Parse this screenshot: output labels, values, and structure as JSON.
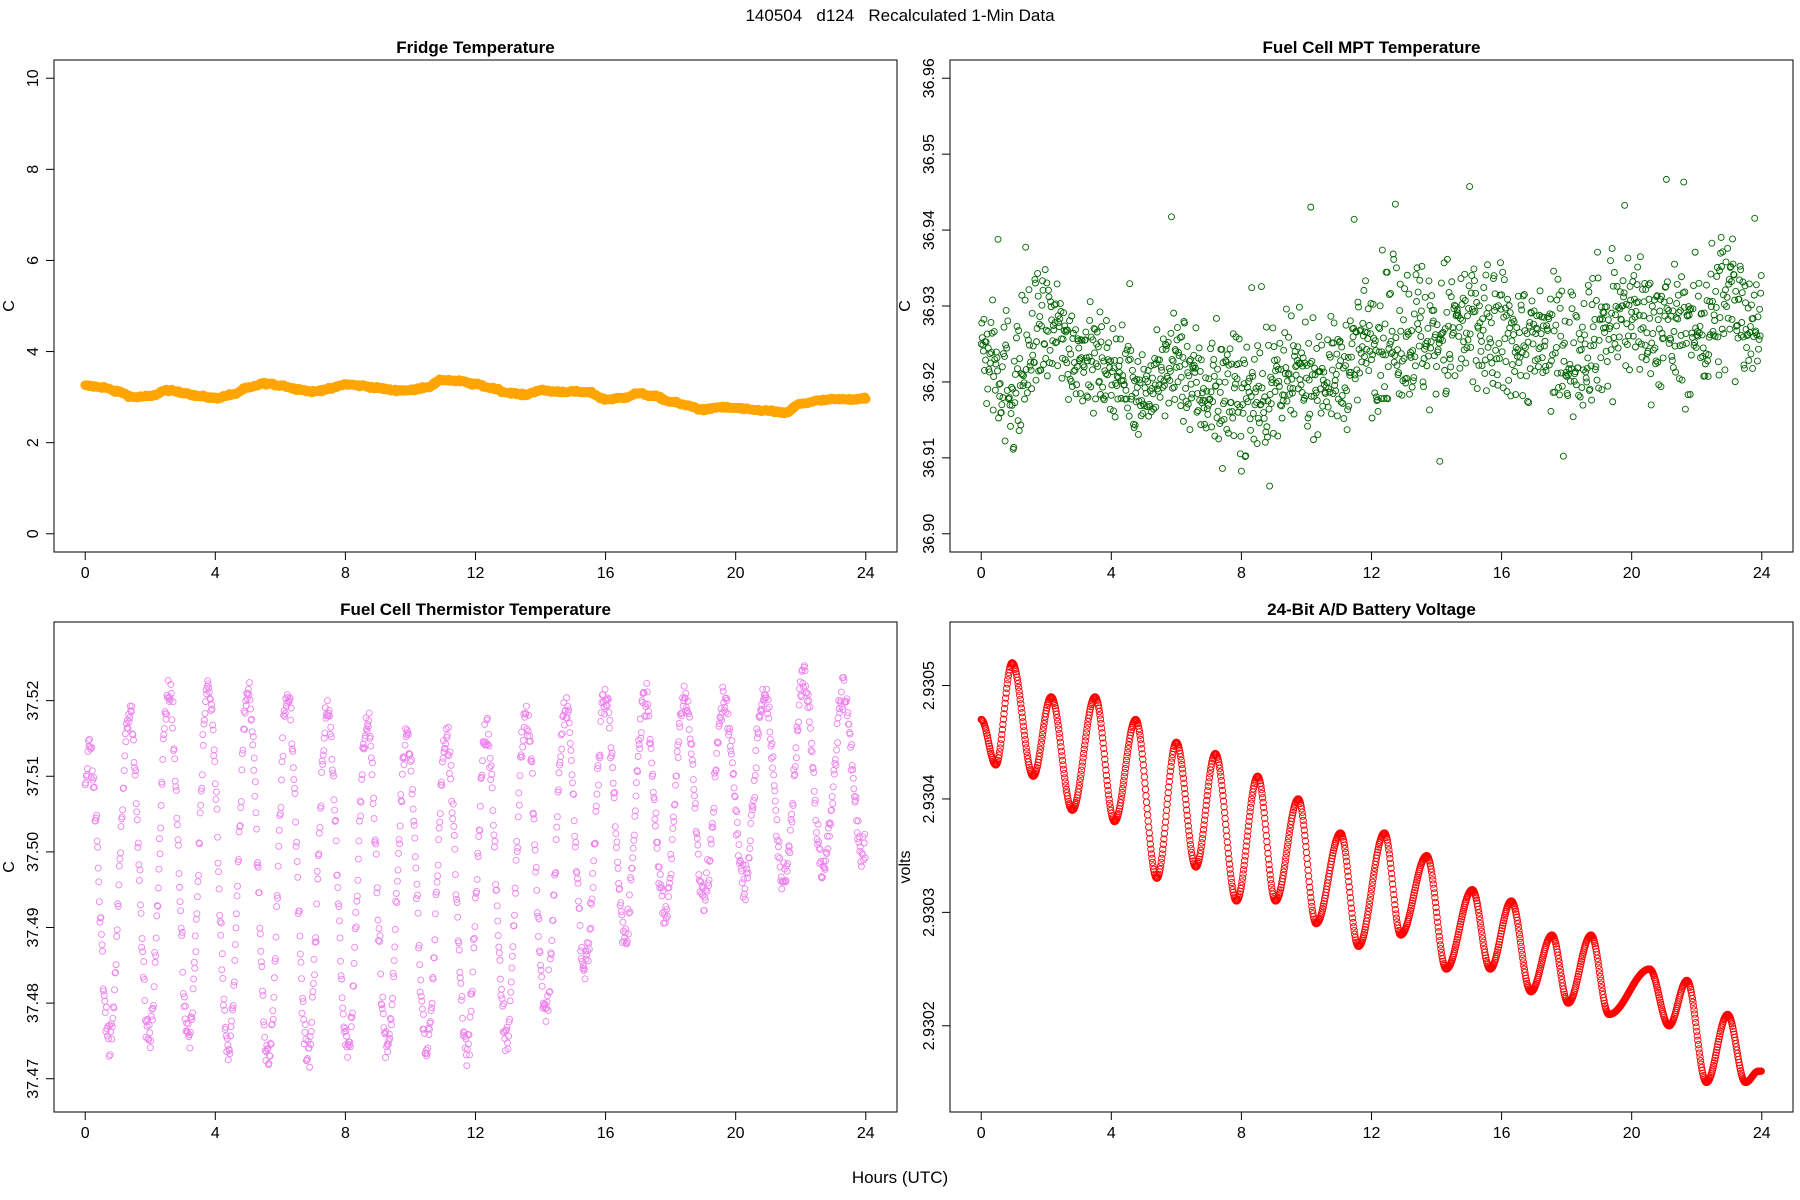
{
  "header": {
    "id": "140504",
    "day": "d124",
    "title": "Recalculated 1-Min Data"
  },
  "global_xlabel": "Hours (UTC)",
  "chart_data": [
    {
      "type": "scatter",
      "title": "Fridge Temperature",
      "xlabel": "",
      "ylabel": "C",
      "color": "#FFA500",
      "marker": "filled-dense",
      "xlim": [
        0,
        24
      ],
      "ylim": [
        0,
        10
      ],
      "xticks": [
        0,
        4,
        8,
        12,
        16,
        20,
        24
      ],
      "yticks": [
        0,
        2,
        4,
        6,
        8,
        10
      ],
      "ytick_labels": [
        "0",
        "2",
        "4",
        "6",
        "8",
        "10"
      ],
      "series": [
        {
          "name": "Fridge Temperature",
          "x": [
            0,
            0.5,
            1,
            1.5,
            2,
            2.5,
            3,
            3.5,
            4,
            4.5,
            5,
            5.5,
            6,
            6.5,
            7,
            7.5,
            8,
            8.5,
            9,
            9.5,
            10,
            10.5,
            11,
            11.5,
            12,
            12.5,
            13,
            13.5,
            14,
            14.5,
            15,
            15.5,
            16,
            16.5,
            17,
            17.5,
            18,
            18.5,
            19,
            19.5,
            20,
            20.5,
            21,
            21.5,
            22,
            22.5,
            23,
            23.5,
            24
          ],
          "y": [
            3.25,
            3.22,
            3.12,
            3.0,
            3.02,
            3.15,
            3.1,
            3.02,
            2.98,
            3.05,
            3.2,
            3.3,
            3.26,
            3.18,
            3.12,
            3.18,
            3.28,
            3.25,
            3.2,
            3.15,
            3.15,
            3.22,
            3.38,
            3.35,
            3.28,
            3.2,
            3.1,
            3.05,
            3.15,
            3.12,
            3.12,
            3.1,
            2.95,
            2.98,
            3.08,
            3.02,
            2.9,
            2.82,
            2.72,
            2.78,
            2.76,
            2.72,
            2.7,
            2.65,
            2.85,
            2.92,
            2.95,
            2.95,
            2.98
          ]
        }
      ]
    },
    {
      "type": "scatter",
      "title": "Fuel Cell MPT Temperature",
      "xlabel": "",
      "ylabel": "C",
      "color": "#006400",
      "marker": "open-circle",
      "xlim": [
        0,
        24
      ],
      "ylim": [
        36.9,
        36.96
      ],
      "xticks": [
        0,
        4,
        8,
        12,
        16,
        20,
        24
      ],
      "yticks": [
        36.9,
        36.91,
        36.92,
        36.93,
        36.94,
        36.95,
        36.96
      ],
      "ytick_labels": [
        "36.90",
        "36.91",
        "36.92",
        "36.93",
        "36.94",
        "36.95",
        "36.96"
      ],
      "series": [
        {
          "name": "Fuel Cell MPT Temperature",
          "x": [
            0,
            1,
            2,
            3,
            4,
            5,
            6,
            7,
            8,
            9,
            10,
            11,
            12,
            13,
            14,
            15,
            16,
            17,
            18,
            19,
            20,
            21,
            22,
            23,
            24
          ],
          "y": [
            36.924,
            36.92,
            36.927,
            36.924,
            36.922,
            36.919,
            36.922,
            36.919,
            36.918,
            36.919,
            36.921,
            36.921,
            36.926,
            36.927,
            36.926,
            36.927,
            36.926,
            36.925,
            36.924,
            36.927,
            36.929,
            36.927,
            36.927,
            36.931,
            36.928
          ],
          "spread": [
            0.006,
            0.009,
            0.007,
            0.006,
            0.005,
            0.005,
            0.006,
            0.007,
            0.007,
            0.007,
            0.006,
            0.006,
            0.008,
            0.009,
            0.009,
            0.009,
            0.008,
            0.007,
            0.008,
            0.008,
            0.008,
            0.007,
            0.008,
            0.009,
            0.007
          ]
        }
      ]
    },
    {
      "type": "scatter",
      "title": "Fuel Cell Thermistor Temperature",
      "xlabel": "",
      "ylabel": "C",
      "color": "#EE82EE",
      "marker": "open-circle",
      "xlim": [
        0,
        24
      ],
      "ylim": [
        37.468,
        37.528
      ],
      "xticks": [
        0,
        4,
        8,
        12,
        16,
        20,
        24
      ],
      "yticks": [
        37.47,
        37.48,
        37.49,
        37.5,
        37.51,
        37.52
      ],
      "ytick_labels": [
        "37.47",
        "37.48",
        "37.49",
        "37.50",
        "37.51",
        "37.52"
      ],
      "series": [
        {
          "name": "Fuel Cell Thermistor Temperature",
          "cycle_hours": 1.22,
          "x": [
            0,
            2,
            4,
            6,
            8,
            10,
            12,
            14,
            16,
            18,
            20,
            22,
            24
          ],
          "y_max": [
            37.513,
            37.521,
            37.522,
            37.521,
            37.518,
            37.515,
            37.515,
            37.519,
            37.52,
            37.521,
            37.52,
            37.523,
            37.52
          ],
          "y_min": [
            37.474,
            37.476,
            37.475,
            37.472,
            37.474,
            37.474,
            37.474,
            37.478,
            37.488,
            37.492,
            37.496,
            37.496,
            37.5
          ]
        }
      ]
    },
    {
      "type": "line",
      "title": "24-Bit A/D Battery Voltage",
      "xlabel": "",
      "ylabel": "volts",
      "color": "#FF0000",
      "marker": "open-circle",
      "xlim": [
        0,
        24
      ],
      "ylim": [
        2.93014,
        2.93054
      ],
      "xticks": [
        0,
        4,
        8,
        12,
        16,
        20,
        24
      ],
      "yticks": [
        2.9302,
        2.9303,
        2.9304,
        2.9305
      ],
      "ytick_labels": [
        "2.9302",
        "2.9303",
        "2.9304",
        "2.9305"
      ],
      "series": [
        {
          "name": "24-Bit A/D Battery Voltage",
          "cycle_hours": 1.25,
          "x": [
            0,
            0.45,
            0.95,
            1.6,
            2.15,
            2.8,
            3.5,
            4.1,
            4.75,
            5.4,
            6.0,
            6.6,
            7.2,
            7.85,
            8.5,
            9.05,
            9.75,
            10.3,
            11.05,
            11.6,
            12.4,
            12.9,
            13.7,
            14.3,
            15.1,
            15.65,
            16.3,
            16.9,
            17.55,
            18.05,
            18.75,
            19.3,
            20.55,
            21.15,
            21.7,
            22.3,
            22.95,
            23.5,
            23.9
          ],
          "y": [
            2.93047,
            2.93043,
            2.93052,
            2.93042,
            2.93049,
            2.93039,
            2.93049,
            2.93038,
            2.93047,
            2.93033,
            2.93045,
            2.93034,
            2.93044,
            2.93031,
            2.93042,
            2.93031,
            2.9304,
            2.93029,
            2.93037,
            2.93027,
            2.93037,
            2.93028,
            2.93035,
            2.93025,
            2.93032,
            2.93025,
            2.93031,
            2.93023,
            2.93028,
            2.93022,
            2.93028,
            2.93021,
            2.93025,
            2.9302,
            2.93024,
            2.93015,
            2.93021,
            2.93015,
            2.93016
          ]
        }
      ]
    }
  ]
}
